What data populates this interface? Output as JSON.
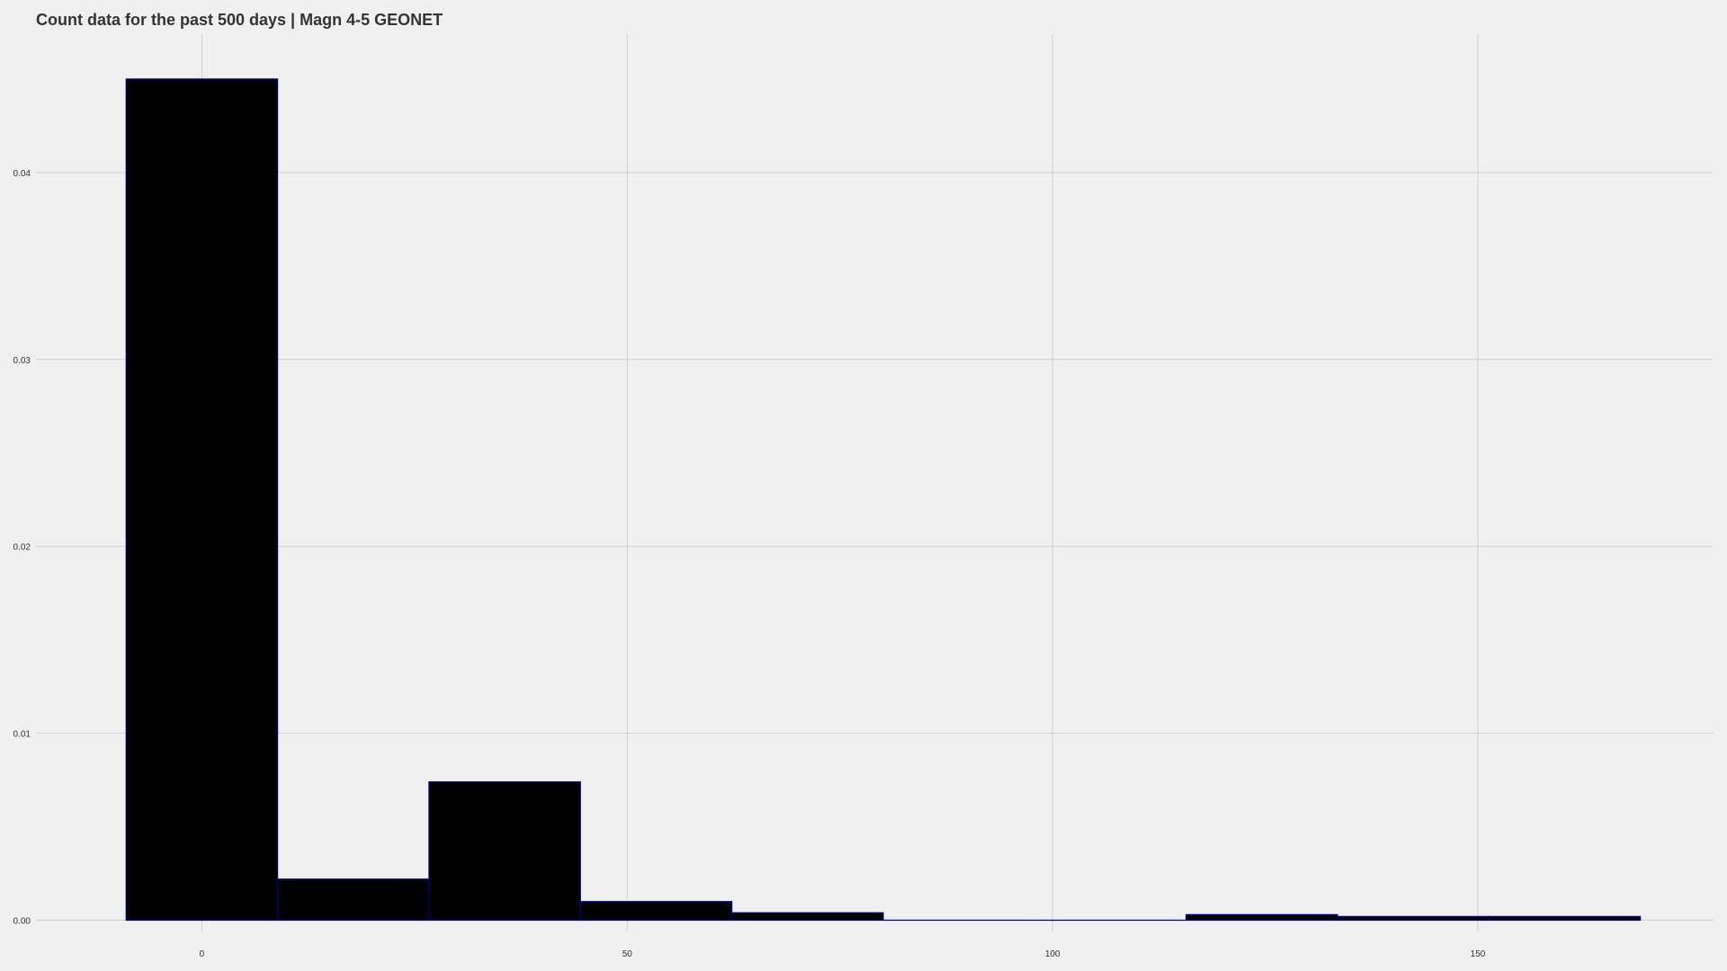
{
  "chart_data": {
    "type": "bar",
    "title": "Count data for the past 500 days | Magn 4-5 GEONET",
    "xlabel": "",
    "ylabel": "",
    "xlim": [
      -19.5,
      177.7
    ],
    "ylim": [
      -0.0006,
      0.0474
    ],
    "x_ticks": [
      0,
      50,
      100,
      150
    ],
    "x_tick_labels": [
      "0",
      "50",
      "100",
      "150"
    ],
    "y_ticks": [
      0,
      0.01,
      0.02,
      0.03,
      0.04
    ],
    "y_tick_labels": [
      "0.00",
      "0.01",
      "0.02",
      "0.03",
      "0.04"
    ],
    "grid": true,
    "bar_fill": "#000000",
    "bar_outline": "#00008b",
    "background": "#f0f0f0",
    "grid_color": "#d0d0d0",
    "bins": [
      {
        "x0": -8.9,
        "x1": 8.9,
        "value": 0.045
      },
      {
        "x0": 8.9,
        "x1": 26.7,
        "value": 0.0022
      },
      {
        "x0": 26.7,
        "x1": 44.5,
        "value": 0.0074
      },
      {
        "x0": 44.5,
        "x1": 62.3,
        "value": 0.001
      },
      {
        "x0": 62.3,
        "x1": 80.1,
        "value": 0.0004
      },
      {
        "x0": 80.1,
        "x1": 97.9,
        "value": 0.0
      },
      {
        "x0": 97.9,
        "x1": 115.7,
        "value": 0.0
      },
      {
        "x0": 115.7,
        "x1": 133.5,
        "value": 0.0003
      },
      {
        "x0": 133.5,
        "x1": 151.3,
        "value": 0.0002
      },
      {
        "x0": 151.3,
        "x1": 169.1,
        "value": 0.0002
      }
    ]
  }
}
